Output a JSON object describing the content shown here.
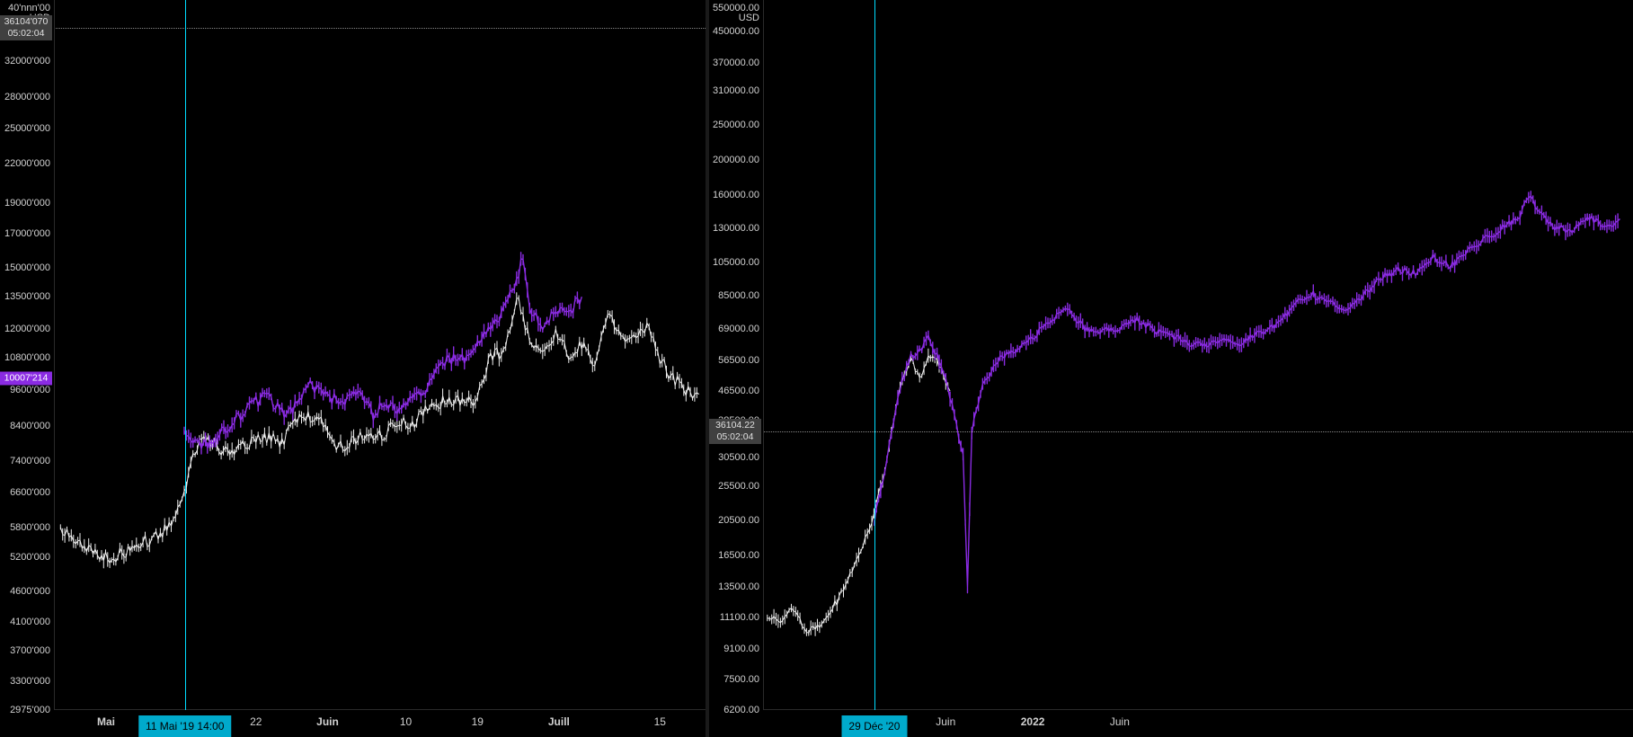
{
  "global": {
    "bg_color": "#000000",
    "axis_border_color": "#2a2a2a",
    "tick_color": "#d1d1d1",
    "divider_color": "#1a1a1a",
    "cursor_line_color": "#00ddff",
    "dotted_line_color": "#888888"
  },
  "left_panel": {
    "type": "candlestick_log",
    "unit_label": "USD",
    "y_top_label_overlap": "40'nnn'00",
    "y_ticks": [
      {
        "label": "32000'000",
        "value": 32000000
      },
      {
        "label": "28000'000",
        "value": 28000000
      },
      {
        "label": "25000'000",
        "value": 25000000
      },
      {
        "label": "22000'000",
        "value": 22000000
      },
      {
        "label": "19000'000",
        "value": 19000000
      },
      {
        "label": "17000'000",
        "value": 17000000
      },
      {
        "label": "15000'000",
        "value": 15000000
      },
      {
        "label": "13500'000",
        "value": 13500000
      },
      {
        "label": "12000'000",
        "value": 12000000
      },
      {
        "label": "10800'000",
        "value": 10800000
      },
      {
        "label": "9600'000",
        "value": 9600000
      },
      {
        "label": "8400'000",
        "value": 8400000
      },
      {
        "label": "7400'000",
        "value": 7400000
      },
      {
        "label": "6600'000",
        "value": 6600000
      },
      {
        "label": "5800'000",
        "value": 5800000
      },
      {
        "label": "5200'000",
        "value": 5200000
      },
      {
        "label": "4600'000",
        "value": 4600000
      },
      {
        "label": "4100'000",
        "value": 4100000
      },
      {
        "label": "3700'000",
        "value": 3700000
      },
      {
        "label": "3300'000",
        "value": 3300000
      },
      {
        "label": "2975'000",
        "value": 2975000
      }
    ],
    "ylim": [
      2975000,
      40000000
    ],
    "price_boxes": [
      {
        "lines": [
          "36104'070",
          "05:02:04"
        ],
        "value": 36104070,
        "class": "primary"
      },
      {
        "lines": [
          "10007'214"
        ],
        "value": 10007214,
        "class": "secondary"
      }
    ],
    "dotted_at_value": 36104070,
    "x_ticks": [
      {
        "label": "Mai",
        "pos": 0.08,
        "bold": true
      },
      {
        "label": "22",
        "pos": 0.31
      },
      {
        "label": "Juin",
        "pos": 0.42,
        "bold": true
      },
      {
        "label": "10",
        "pos": 0.54
      },
      {
        "label": "19",
        "pos": 0.65
      },
      {
        "label": "Juill",
        "pos": 0.775,
        "bold": true
      },
      {
        "label": "15",
        "pos": 0.93
      }
    ],
    "cursor_x_pos": 0.201,
    "time_box_label": "11 Mai '19   14:00",
    "time_box_bg": "#00aacc",
    "series_white": {
      "color": "#f0f0f0",
      "stroke_width": 1.0,
      "data": [
        [
          0.01,
          5800000
        ],
        [
          0.04,
          5500000
        ],
        [
          0.07,
          5200000
        ],
        [
          0.095,
          5200000
        ],
        [
          0.12,
          5400000
        ],
        [
          0.14,
          5500000
        ],
        [
          0.16,
          5600000
        ],
        [
          0.18,
          5900000
        ],
        [
          0.2,
          6600000
        ],
        [
          0.21,
          7400000
        ],
        [
          0.23,
          8200000
        ],
        [
          0.25,
          7800000
        ],
        [
          0.27,
          7600000
        ],
        [
          0.29,
          7900000
        ],
        [
          0.31,
          8000000
        ],
        [
          0.33,
          8100000
        ],
        [
          0.35,
          7900000
        ],
        [
          0.37,
          8600000
        ],
        [
          0.39,
          8700000
        ],
        [
          0.41,
          8500000
        ],
        [
          0.43,
          7900000
        ],
        [
          0.45,
          7800000
        ],
        [
          0.47,
          8100000
        ],
        [
          0.49,
          8000000
        ],
        [
          0.51,
          8200000
        ],
        [
          0.53,
          8600000
        ],
        [
          0.55,
          8400000
        ],
        [
          0.57,
          8900000
        ],
        [
          0.59,
          9100000
        ],
        [
          0.61,
          9300000
        ],
        [
          0.63,
          9100000
        ],
        [
          0.65,
          9400000
        ],
        [
          0.67,
          10800000
        ],
        [
          0.69,
          11000000
        ],
        [
          0.71,
          13500000
        ],
        [
          0.73,
          11500000
        ],
        [
          0.75,
          11000000
        ],
        [
          0.77,
          11800000
        ],
        [
          0.79,
          11000000
        ],
        [
          0.81,
          11400000
        ],
        [
          0.83,
          10500000
        ],
        [
          0.85,
          12500000
        ],
        [
          0.87,
          11800000
        ],
        [
          0.89,
          11500000
        ],
        [
          0.91,
          12200000
        ],
        [
          0.93,
          10800000
        ],
        [
          0.95,
          10000000
        ],
        [
          0.97,
          9600000
        ],
        [
          0.99,
          9450000
        ]
      ]
    },
    "series_purple": {
      "color": "#8a2be2",
      "stroke_width": 1.4,
      "data": [
        [
          0.2,
          8400000
        ],
        [
          0.22,
          7800000
        ],
        [
          0.245,
          8000000
        ],
        [
          0.27,
          8400000
        ],
        [
          0.29,
          8800000
        ],
        [
          0.31,
          9200000
        ],
        [
          0.33,
          9400000
        ],
        [
          0.35,
          8800000
        ],
        [
          0.37,
          9000000
        ],
        [
          0.39,
          9800000
        ],
        [
          0.41,
          9600000
        ],
        [
          0.43,
          9300000
        ],
        [
          0.45,
          9300000
        ],
        [
          0.47,
          9700000
        ],
        [
          0.49,
          8700000
        ],
        [
          0.51,
          9200000
        ],
        [
          0.53,
          8900000
        ],
        [
          0.55,
          9400000
        ],
        [
          0.57,
          9600000
        ],
        [
          0.59,
          10600000
        ],
        [
          0.61,
          10800000
        ],
        [
          0.63,
          10700000
        ],
        [
          0.65,
          11400000
        ],
        [
          0.67,
          12000000
        ],
        [
          0.69,
          12800000
        ],
        [
          0.71,
          14200000
        ],
        [
          0.72,
          15800000
        ],
        [
          0.73,
          13000000
        ],
        [
          0.75,
          12200000
        ],
        [
          0.77,
          12800000
        ],
        [
          0.79,
          12800000
        ],
        [
          0.81,
          13500000
        ]
      ]
    }
  },
  "right_panel": {
    "type": "candlestick_log",
    "unit_label": "USD",
    "y_top_label_overlap": "550000.00",
    "y_ticks": [
      {
        "label": "450000.00",
        "value": 450000
      },
      {
        "label": "370000.00",
        "value": 370000
      },
      {
        "label": "310000.00",
        "value": 310000
      },
      {
        "label": "250000.00",
        "value": 250000
      },
      {
        "label": "200000.00",
        "value": 200000
      },
      {
        "label": "160000.00",
        "value": 160000
      },
      {
        "label": "130000.00",
        "value": 130000
      },
      {
        "label": "105000.00",
        "value": 105000
      },
      {
        "label": "85000.00",
        "value": 85000
      },
      {
        "label": "69000.00",
        "value": 69000
      },
      {
        "label": "56500.00",
        "value": 56500
      },
      {
        "label": "46500.00",
        "value": 46500
      },
      {
        "label": "38500.00",
        "value": 38500
      },
      {
        "label": "30500.00",
        "value": 30500
      },
      {
        "label": "25500.00",
        "value": 25500
      },
      {
        "label": "20500.00",
        "value": 20500
      },
      {
        "label": "16500.00",
        "value": 16500
      },
      {
        "label": "13500.00",
        "value": 13500
      },
      {
        "label": "11100.00",
        "value": 11100
      },
      {
        "label": "9100.00",
        "value": 9100
      },
      {
        "label": "7500.00",
        "value": 7500
      },
      {
        "label": "6200.00",
        "value": 6200
      }
    ],
    "ylim": [
      6200,
      550000
    ],
    "price_boxes": [
      {
        "lines": [
          "36104.22",
          "05:02:04"
        ],
        "value": 36104.22,
        "class": "primary"
      }
    ],
    "dotted_at_value": 36104.22,
    "x_ticks": [
      {
        "label": "Juin",
        "pos": 0.21
      },
      {
        "label": "2022",
        "pos": 0.31,
        "bold": true
      },
      {
        "label": "Juin",
        "pos": 0.41
      }
    ],
    "cursor_x_pos": 0.128,
    "time_box_label": "29 Déc '20",
    "time_box_bg": "#00aacc",
    "series_white": {
      "color": "#f0f0f0",
      "stroke_width": 1.0,
      "data": [
        [
          0.005,
          11100
        ],
        [
          0.02,
          10800
        ],
        [
          0.035,
          11800
        ],
        [
          0.05,
          10200
        ],
        [
          0.065,
          10500
        ],
        [
          0.08,
          11800
        ],
        [
          0.095,
          13500
        ],
        [
          0.11,
          16500
        ],
        [
          0.125,
          20500
        ],
        [
          0.14,
          28000
        ],
        [
          0.15,
          38500
        ],
        [
          0.16,
          50000
        ],
        [
          0.17,
          56500
        ],
        [
          0.18,
          50000
        ],
        [
          0.19,
          58000
        ],
        [
          0.2,
          56500
        ],
        [
          0.21,
          50000
        ],
        [
          0.215,
          46500
        ]
      ]
    },
    "series_purple": {
      "color": "#8a2be2",
      "stroke_width": 1.4,
      "data": [
        [
          0.128,
          20500
        ],
        [
          0.14,
          28000
        ],
        [
          0.15,
          38500
        ],
        [
          0.16,
          50000
        ],
        [
          0.17,
          58000
        ],
        [
          0.18,
          60000
        ],
        [
          0.19,
          65000
        ],
        [
          0.2,
          58000
        ],
        [
          0.21,
          50000
        ],
        [
          0.22,
          40000
        ],
        [
          0.23,
          30500
        ],
        [
          0.235,
          13500
        ],
        [
          0.24,
          36000
        ],
        [
          0.25,
          46500
        ],
        [
          0.27,
          56500
        ],
        [
          0.29,
          60000
        ],
        [
          0.31,
          65000
        ],
        [
          0.33,
          73000
        ],
        [
          0.35,
          78000
        ],
        [
          0.37,
          69000
        ],
        [
          0.39,
          68000
        ],
        [
          0.41,
          70000
        ],
        [
          0.43,
          73000
        ],
        [
          0.45,
          68000
        ],
        [
          0.47,
          66000
        ],
        [
          0.49,
          63000
        ],
        [
          0.51,
          62000
        ],
        [
          0.53,
          64000
        ],
        [
          0.55,
          63000
        ],
        [
          0.57,
          67000
        ],
        [
          0.59,
          70000
        ],
        [
          0.61,
          80000
        ],
        [
          0.63,
          86000
        ],
        [
          0.65,
          82000
        ],
        [
          0.67,
          78000
        ],
        [
          0.69,
          85000
        ],
        [
          0.71,
          95000
        ],
        [
          0.73,
          100000
        ],
        [
          0.75,
          98000
        ],
        [
          0.77,
          108000
        ],
        [
          0.79,
          103000
        ],
        [
          0.81,
          112000
        ],
        [
          0.83,
          122000
        ],
        [
          0.85,
          130000
        ],
        [
          0.87,
          140000
        ],
        [
          0.88,
          160000
        ],
        [
          0.89,
          148000
        ],
        [
          0.91,
          130000
        ],
        [
          0.93,
          128000
        ],
        [
          0.95,
          140000
        ],
        [
          0.97,
          130000
        ],
        [
          0.985,
          138000
        ]
      ]
    }
  }
}
